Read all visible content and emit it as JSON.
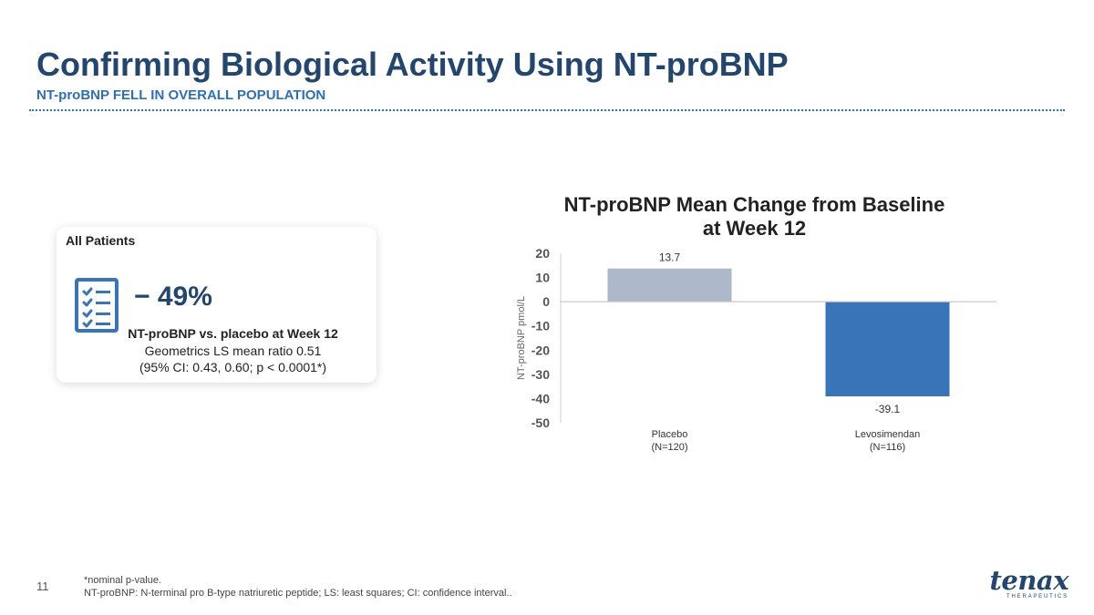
{
  "slide": {
    "title": "Confirming Biological Activity Using NT-proBNP",
    "subtitle": "NT-proBNP FELL IN OVERALL POPULATION",
    "page_number": "11"
  },
  "card": {
    "label": "All Patients",
    "icon": "checklist-icon",
    "big_value": "− 49%",
    "line1": "NT-proBNP vs. placebo at Week 12",
    "line2": "Geometrics LS mean ratio 0.51",
    "line3": "(95% CI: 0.43, 0.60; p < 0.0001*)"
  },
  "footnotes": [
    "*nominal p-value.",
    "NT-proBNP: N-terminal pro B-type natriuretic peptide; LS: least squares; CI: confidence interval.."
  ],
  "logo": {
    "word": "tenax",
    "sub": "THERAPEUTICS"
  },
  "colors": {
    "title": "#23466f",
    "subtitle": "#2f6fb5",
    "placebo_bar": "#adb9ca",
    "levo_bar": "#3a74b8"
  },
  "chart_data": {
    "type": "bar",
    "title_lines": [
      "NT-proBNP Mean Change from Baseline",
      "at Week 12"
    ],
    "ylabel": "NT-proBNP pmol/L",
    "xlabel": "",
    "ylim": [
      -50,
      20
    ],
    "yticks": [
      20,
      10,
      0,
      -10,
      -20,
      -30,
      -40,
      -50
    ],
    "categories": [
      {
        "name": "Placebo",
        "n": "(N=120)"
      },
      {
        "name": "Levosimendan",
        "n": "(N=116)"
      }
    ],
    "values": [
      13.7,
      -39.1
    ],
    "value_labels": [
      "13.7",
      "-39.1"
    ],
    "grid": false,
    "legend": "none"
  }
}
